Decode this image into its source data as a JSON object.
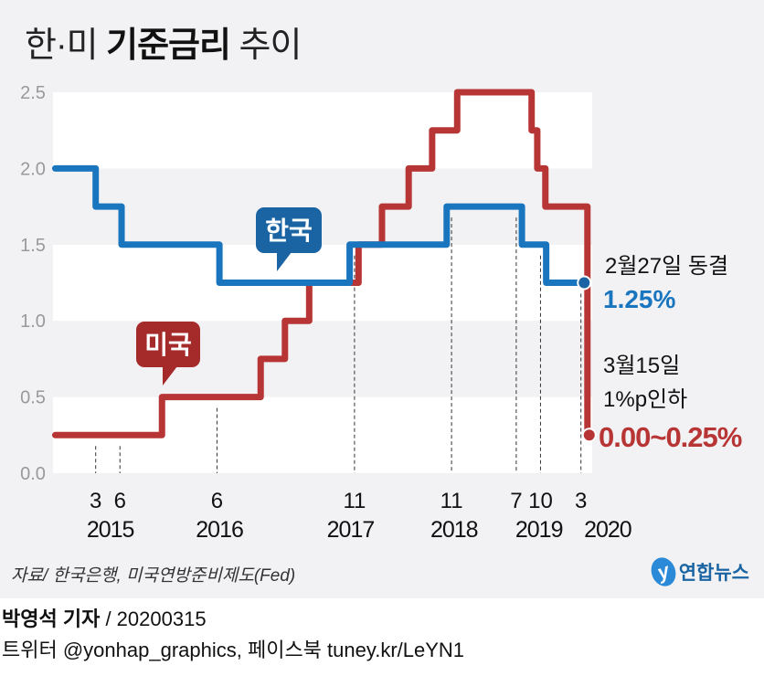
{
  "title": {
    "prefix": "한·미 ",
    "bold": "기준금리",
    "suffix": " 추이"
  },
  "chart_data": {
    "type": "line",
    "step": true,
    "title": "한·미 기준금리 추이",
    "x_unit": "months since Jan 2015 (estimated)",
    "ylim": [
      0,
      2.5
    ],
    "yticks": [
      "0.0",
      "0.5",
      "1.0",
      "1.5",
      "2.0",
      "2.5"
    ],
    "ytick_values": [
      0,
      0.5,
      1.0,
      1.5,
      2.0,
      2.5
    ],
    "xticks": [
      {
        "month": 2,
        "label": "3"
      },
      {
        "month": 5,
        "label": "6"
      },
      {
        "month": 17,
        "label": "6"
      },
      {
        "month": 34,
        "label": "11"
      },
      {
        "month": 46,
        "label": "11"
      },
      {
        "month": 54,
        "label": "7"
      },
      {
        "month": 57,
        "label": "10"
      },
      {
        "month": 62,
        "label": "3"
      }
    ],
    "year_labels": [
      {
        "month": 3.8,
        "label": "2015"
      },
      {
        "month": 17.3,
        "label": "2016"
      },
      {
        "month": 33.5,
        "label": "2017"
      },
      {
        "month": 46.3,
        "label": "2018"
      },
      {
        "month": 56.8,
        "label": "2019"
      },
      {
        "month": 65.3,
        "label": "2020"
      }
    ],
    "series": [
      {
        "name": "한국",
        "color": "#1a75bf",
        "x": [
          -3,
          2,
          5.2,
          17.3,
          33.4,
          45.4,
          54.7,
          57.7,
          62.4
        ],
        "values": [
          2.0,
          1.75,
          1.5,
          1.25,
          1.5,
          1.75,
          1.5,
          1.25,
          1.25
        ]
      },
      {
        "name": "미국",
        "color": "#b83535",
        "x": [
          -3,
          10.2,
          22.4,
          25.4,
          28.4,
          34.5,
          37.4,
          40.7,
          43.6,
          46.7,
          55.9,
          56.6,
          57.6,
          62.8,
          62.8
        ],
        "values": [
          0.25,
          0.5,
          0.75,
          1.0,
          1.25,
          1.5,
          1.75,
          2.0,
          2.25,
          2.5,
          2.25,
          2.0,
          1.75,
          0.25,
          0.25
        ]
      }
    ],
    "annotations": {
      "korea_date": "2월27일 동결",
      "korea_value": "1.25%",
      "us_date": "3월15일",
      "us_change": "1%p인하",
      "us_value": "0.00~0.25%"
    },
    "labels": {
      "korea": "한국",
      "us": "미국"
    },
    "grid": "alternating horizontal bands"
  },
  "source": "자료/ 한국은행, 미국연방준비제도(Fed)",
  "logo": "연합뉴스",
  "credit": {
    "author": "박영석 기자",
    "sep": " /  ",
    "date": "20200315",
    "social": "트위터 @yonhap_graphics, 페이스북 tuney.kr/LeYN1"
  }
}
